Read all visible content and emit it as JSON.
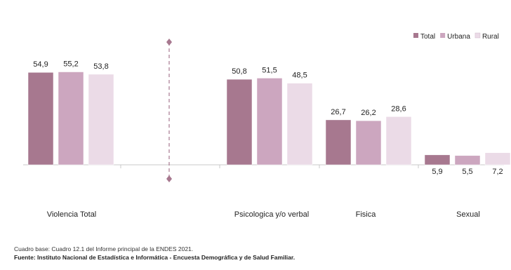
{
  "chart_data": {
    "type": "bar",
    "categories": [
      "Violencia Total",
      "Psicologica y/o verbal",
      "Fisica",
      "Sexual"
    ],
    "series": [
      {
        "name": "Total",
        "values": [
          54.9,
          50.8,
          26.7,
          5.9
        ],
        "labels": [
          "54,9",
          "50,8",
          "26,7",
          "5,9"
        ]
      },
      {
        "name": "Urbana",
        "values": [
          55.2,
          51.5,
          26.2,
          5.5
        ],
        "labels": [
          "55,2",
          "51,5",
          "26,2",
          "5,5"
        ]
      },
      {
        "name": "Rural",
        "values": [
          53.8,
          48.5,
          28.6,
          7.2
        ],
        "labels": [
          "53,8",
          "48,5",
          "28,6",
          "7,2"
        ]
      }
    ],
    "colors": [
      "#a7788f",
      "#cca6bf",
      "#ebdbe7"
    ],
    "title": "",
    "xlabel": "",
    "ylabel": "",
    "grid": false,
    "legend_position": "top-right"
  },
  "notes": {
    "line1": "Cuadro base: Cuadro 12.1 del Informe principal de la ENDES 2021.",
    "line2": "Fuente: Instituto Nacional de Estadística e Informática - Encuesta Demográfica y de Salud Familiar."
  }
}
